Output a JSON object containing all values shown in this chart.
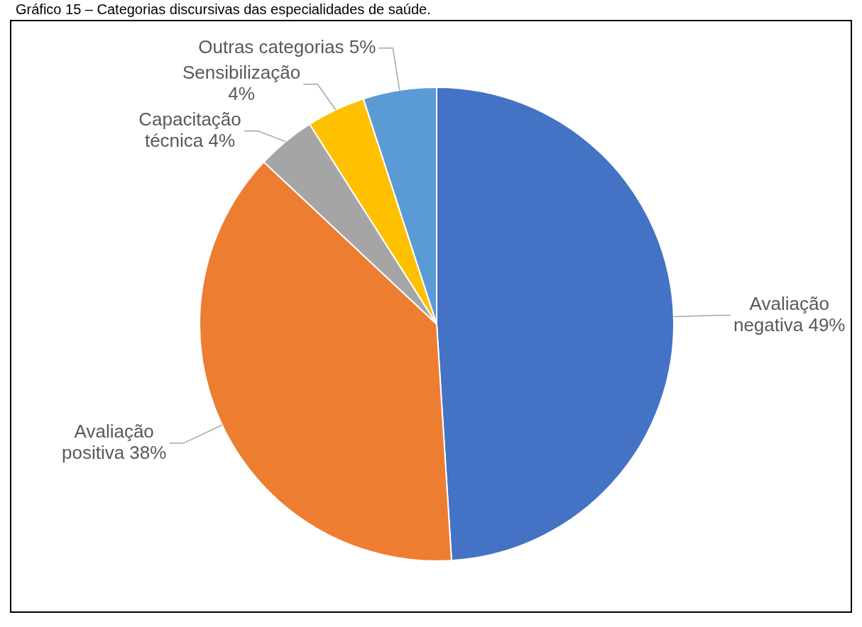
{
  "chart_data": {
    "type": "pie",
    "title": "Gráfico 15 – Categorias discursivas das especialidades de saúde.",
    "categories": [
      "Avaliação negativa",
      "Avaliação positiva",
      "Capacitação técnica",
      "Sensibilização",
      "Outras categorias"
    ],
    "values": [
      49,
      38,
      4,
      4,
      5
    ],
    "colors": [
      "#4472c4",
      "#ed7d31",
      "#a5a5a5",
      "#ffc000",
      "#5b9bd5"
    ],
    "value_labels": [
      "49%",
      "38%",
      "4%",
      "4%",
      "5%"
    ],
    "legend": false
  }
}
